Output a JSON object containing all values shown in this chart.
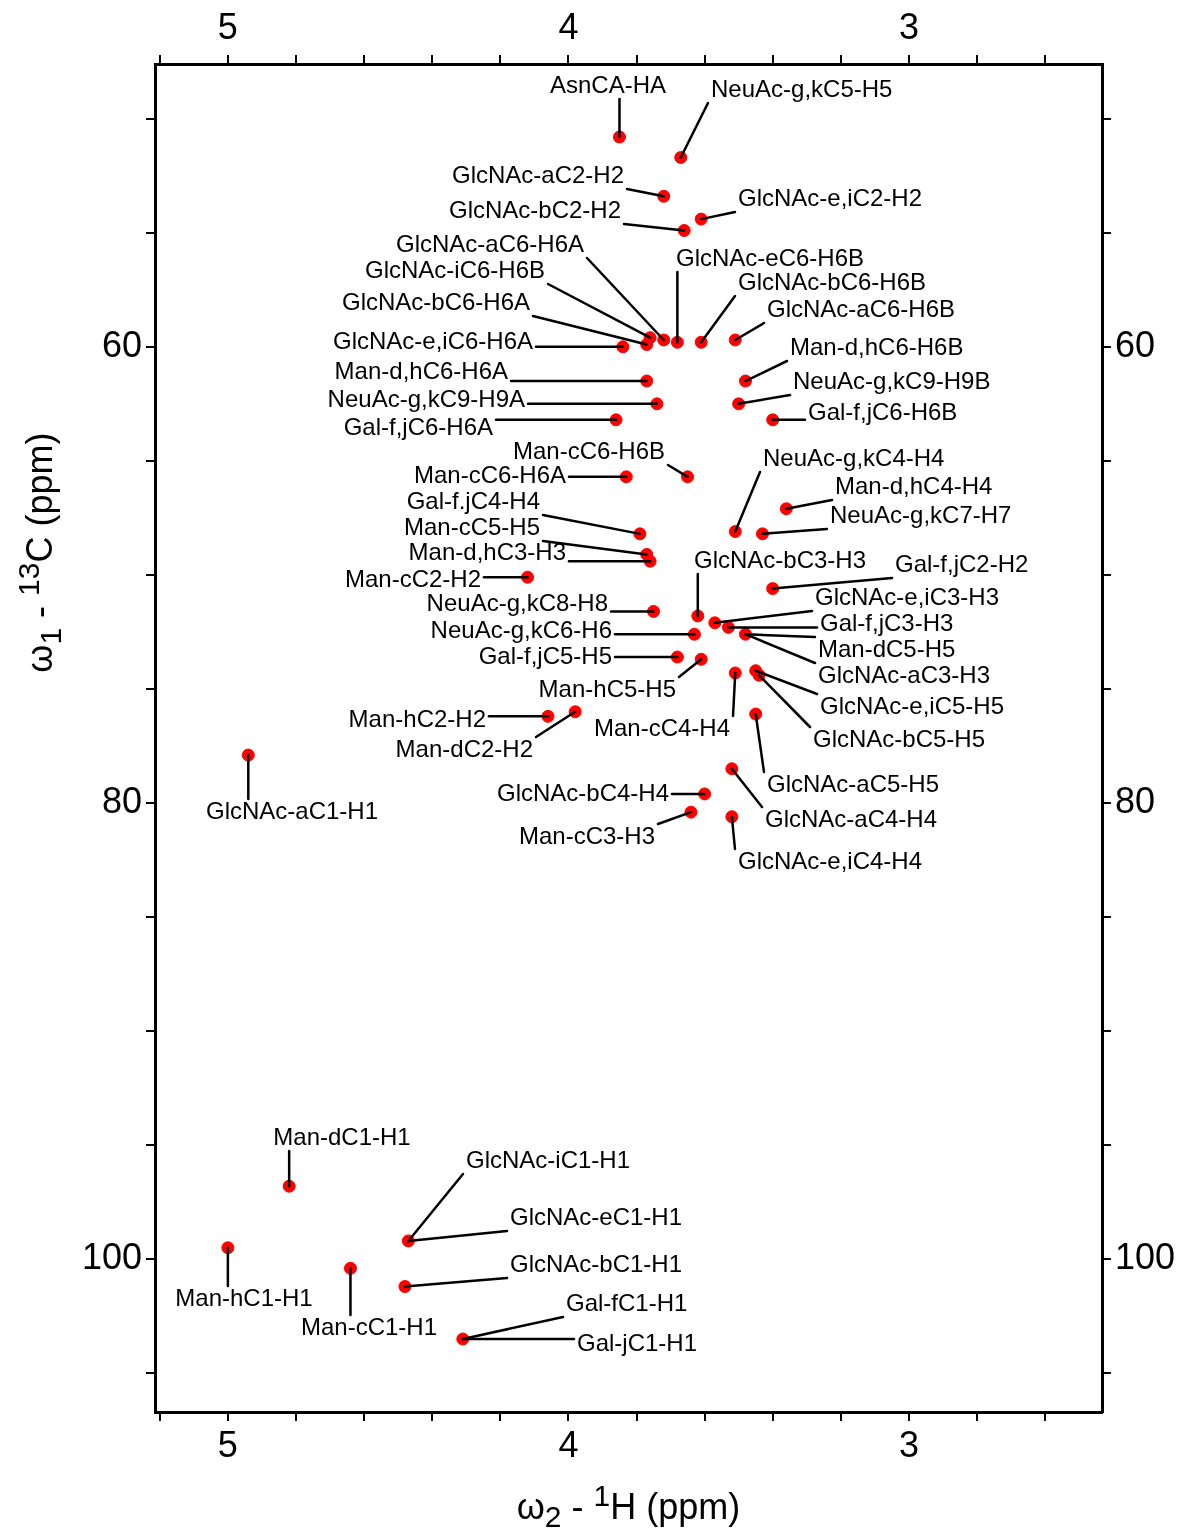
{
  "chart_data": {
    "type": "scatter",
    "xlabel": "ω$_{2}$ - $^{1}$H  (ppm)",
    "ylabel": "ω$_{1}$ - $^{13}$C (ppm)",
    "xlim": [
      5.214,
      2.433
    ],
    "xticks": [
      {
        "value": 5.2,
        "label": null
      },
      5,
      {
        "value": 4.8,
        "label": null
      },
      {
        "value": 4.6,
        "label": null
      },
      {
        "value": 4.4,
        "label": null
      },
      {
        "value": 4.2,
        "label": null
      },
      4,
      {
        "value": 3.8,
        "label": null
      },
      {
        "value": 3.6,
        "label": null
      },
      {
        "value": 3.4,
        "label": null
      },
      {
        "value": 3.2,
        "label": null
      },
      3,
      {
        "value": 2.8,
        "label": null
      },
      {
        "value": 2.6,
        "label": null
      }
    ],
    "x2lim": [
      5.214,
      2.433
    ],
    "x2ticks": [
      {
        "value": 5.2,
        "label": null
      },
      5,
      {
        "value": 4.8,
        "label": null
      },
      {
        "value": 4.6,
        "label": null
      },
      {
        "value": 4.4,
        "label": null
      },
      {
        "value": 4.2,
        "label": null
      },
      4,
      {
        "value": 3.8,
        "label": null
      },
      {
        "value": 3.6,
        "label": null
      },
      {
        "value": 3.4,
        "label": null
      },
      {
        "value": 3.2,
        "label": null
      },
      3,
      {
        "value": 2.8,
        "label": null
      },
      {
        "value": 2.6,
        "label": null
      }
    ],
    "ylim": [
      106.7,
      47.6
    ],
    "yticks": [
      {
        "value": 50,
        "label": null
      },
      {
        "value": 55,
        "label": null
      },
      60,
      {
        "value": 65,
        "label": null
      },
      {
        "value": 70,
        "label": null
      },
      {
        "value": 75,
        "label": null
      },
      80,
      {
        "value": 85,
        "label": null
      },
      {
        "value": 90,
        "label": null
      },
      {
        "value": 95,
        "label": null
      },
      100,
      {
        "value": 105,
        "label": null
      }
    ],
    "y2lim": [
      106.7,
      47.6
    ],
    "y2ticks": [
      {
        "value": 50,
        "label": null
      },
      {
        "value": 55,
        "label": null
      },
      60,
      {
        "value": 65,
        "label": null
      },
      {
        "value": 70,
        "label": null
      },
      {
        "value": 75,
        "label": null
      },
      80,
      {
        "value": 85,
        "label": null
      },
      {
        "value": 90,
        "label": null
      },
      {
        "value": 95,
        "label": null
      },
      100,
      {
        "value": 105,
        "label": null
      }
    ],
    "marker": "circle",
    "series": [
      {
        "color": "#ff0000",
        "x": [
          3.85,
          3.67,
          3.72,
          3.66,
          3.61,
          3.72,
          3.76,
          3.77,
          3.84,
          3.68,
          3.61,
          3.51,
          3.77,
          3.48,
          3.74,
          3.5,
          3.86,
          3.4,
          3.65,
          3.83,
          3.51,
          3.36,
          3.43,
          3.79,
          3.77,
          3.76,
          4.12,
          3.62,
          3.4,
          3.57,
          3.75,
          3.63,
          3.53,
          3.68,
          3.48,
          3.61,
          3.45,
          3.51,
          3.44,
          4.06,
          3.98,
          3.45,
          4.94,
          3.6,
          3.52,
          3.64,
          3.52,
          4.82,
          4.47,
          4.48,
          4.31,
          5.0,
          4.64
        ],
        "values": [
          50.8,
          51.7,
          53.4,
          54.9,
          54.4,
          59.7,
          59.6,
          59.9,
          60.0,
          59.8,
          59.8,
          59.7,
          61.5,
          61.5,
          62.5,
          62.5,
          63.2,
          63.2,
          65.7,
          65.7,
          68.1,
          67.1,
          68.2,
          68.2,
          69.1,
          69.4,
          70.1,
          71.8,
          70.6,
          72.1,
          71.6,
          72.6,
          72.3,
          73.6,
          72.6,
          73.7,
          74.2,
          74.3,
          74.4,
          76.2,
          76.0,
          76.1,
          77.9,
          79.6,
          78.5,
          80.4,
          80.6,
          96.8,
          99.2,
          101.2,
          103.5,
          99.5,
          100.4
        ]
      }
    ],
    "annotations": [
      {
        "text": "AsnCA-HA",
        "x": 3.85,
        "y": 50.8
      },
      {
        "text": "NeuAc-g,kC5-H5",
        "x": 3.67,
        "y": 51.7
      },
      {
        "text": "GlcNAc-aC2-H2",
        "x": 3.72,
        "y": 53.4
      },
      {
        "text": "GlcNAc-bC2-H2",
        "x": 3.66,
        "y": 54.9
      },
      {
        "text": "GlcNAc-e,iC2-H2",
        "x": 3.61,
        "y": 54.4
      },
      {
        "text": "GlcNAc-aC6-H6A",
        "x": 3.72,
        "y": 59.7
      },
      {
        "text": "GlcNAc-iC6-H6B",
        "x": 3.76,
        "y": 59.6
      },
      {
        "text": "GlcNAc-bC6-H6A",
        "x": 3.77,
        "y": 59.9
      },
      {
        "text": "GlcNAc-e,iC6-H6A",
        "x": 3.84,
        "y": 60.0
      },
      {
        "text": "GlcNAc-eC6-H6B",
        "x": 3.68,
        "y": 59.8
      },
      {
        "text": "GlcNAc-bC6-H6B",
        "x": 3.61,
        "y": 59.8
      },
      {
        "text": "GlcNAc-aC6-H6B",
        "x": 3.51,
        "y": 59.7
      },
      {
        "text": "Man-d,hC6-H6A",
        "x": 3.77,
        "y": 61.5
      },
      {
        "text": "Man-d,hC6-H6B",
        "x": 3.48,
        "y": 61.5
      },
      {
        "text": "NeuAc-g,kC9-H9A",
        "x": 3.74,
        "y": 62.5
      },
      {
        "text": "NeuAc-g,kC9-H9B",
        "x": 3.5,
        "y": 62.5
      },
      {
        "text": "Gal-f,jC6-H6A",
        "x": 3.86,
        "y": 63.2
      },
      {
        "text": "Gal-f,jC6-H6B",
        "x": 3.4,
        "y": 63.2
      },
      {
        "text": "Man-cC6-H6B",
        "x": 3.65,
        "y": 65.7
      },
      {
        "text": "Man-cC6-H6A",
        "x": 3.83,
        "y": 65.7
      },
      {
        "text": "NeuAc-g,kC4-H4",
        "x": 3.51,
        "y": 68.1
      },
      {
        "text": "Man-d,hC4-H4",
        "x": 3.36,
        "y": 67.1
      },
      {
        "text": "NeuAc-g,kC7-H7",
        "x": 3.43,
        "y": 68.2
      },
      {
        "text": "Gal-f.jC4-H4",
        "x": 3.79,
        "y": 68.2
      },
      {
        "text": "Man-cC5-H5",
        "x": 3.77,
        "y": 69.1
      },
      {
        "text": "Man-d,hC3-H3",
        "x": 3.76,
        "y": 69.4
      },
      {
        "text": "Man-cC2-H2",
        "x": 4.12,
        "y": 70.1
      },
      {
        "text": "GlcNAc-bC3-H3",
        "x": 3.62,
        "y": 71.8
      },
      {
        "text": "Gal-f,jC2-H2",
        "x": 3.4,
        "y": 70.6
      },
      {
        "text": "GlcNAc-e,iC3-H3",
        "x": 3.57,
        "y": 72.1
      },
      {
        "text": "NeuAc-g,kC8-H8",
        "x": 3.75,
        "y": 71.6
      },
      {
        "text": "NeuAc-g,kC6-H6",
        "x": 3.63,
        "y": 72.6
      },
      {
        "text": "Gal-f,jC3-H3",
        "x": 3.53,
        "y": 72.3
      },
      {
        "text": "Gal-f,jC5-H5",
        "x": 3.68,
        "y": 73.6
      },
      {
        "text": "Man-dC5-H5",
        "x": 3.48,
        "y": 72.6
      },
      {
        "text": "GlcNAc-aC3-H3",
        "x": 3.48,
        "y": 72.6
      },
      {
        "text": "Man-hC5-H5",
        "x": 3.61,
        "y": 73.7
      },
      {
        "text": "GlcNAc-e,iC5-H5",
        "x": 3.45,
        "y": 74.2
      },
      {
        "text": "Man-cC4-H4",
        "x": 3.51,
        "y": 74.3
      },
      {
        "text": "GlcNAc-bC5-H5",
        "x": 3.44,
        "y": 74.4
      },
      {
        "text": "Man-hC2-H2",
        "x": 4.06,
        "y": 76.2
      },
      {
        "text": "Man-dC2-H2",
        "x": 3.98,
        "y": 76.0
      },
      {
        "text": "GlcNAc-aC5-H5",
        "x": 3.45,
        "y": 76.1
      },
      {
        "text": "GlcNAc-aC1-H1",
        "x": 4.94,
        "y": 77.9
      },
      {
        "text": "GlcNAc-bC4-H4",
        "x": 3.6,
        "y": 79.6
      },
      {
        "text": "GlcNAc-aC4-H4",
        "x": 3.52,
        "y": 78.5
      },
      {
        "text": "Man-cC3-H3",
        "x": 3.64,
        "y": 80.4
      },
      {
        "text": "GlcNAc-e,iC4-H4",
        "x": 3.52,
        "y": 80.6
      },
      {
        "text": "Man-dC1-H1",
        "x": 4.82,
        "y": 96.8
      },
      {
        "text": "GlcNAc-iC1-H1",
        "x": 4.47,
        "y": 99.2
      },
      {
        "text": "GlcNAc-eC1-H1",
        "x": 4.47,
        "y": 99.2
      },
      {
        "text": "GlcNAc-bC1-H1",
        "x": 4.48,
        "y": 101.2
      },
      {
        "text": "Gal-fC1-H1",
        "x": 4.31,
        "y": 103.5
      },
      {
        "text": "Gal-jC1-H1",
        "x": 4.31,
        "y": 103.5
      },
      {
        "text": "Man-hC1-H1",
        "x": 5.0,
        "y": 99.5
      },
      {
        "text": "Man-cC1-H1",
        "x": 4.64,
        "y": 100.4
      }
    ]
  }
}
